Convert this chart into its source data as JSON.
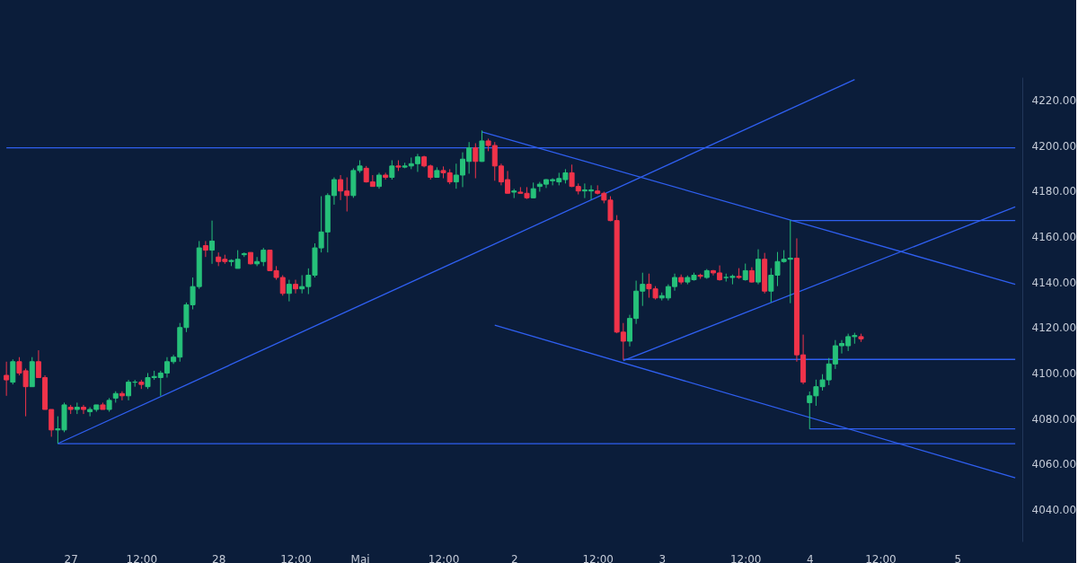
{
  "chart_data": {
    "type": "candlestick",
    "categories": [
      null,
      null,
      null,
      null,
      null,
      null,
      null,
      null,
      null,
      null,
      "27",
      null,
      null,
      null,
      null,
      null,
      null,
      null,
      null,
      null,
      null,
      "12:00",
      null,
      null,
      null,
      null,
      null,
      null,
      null,
      null,
      null,
      null,
      null,
      "28",
      null,
      null,
      null,
      null,
      null,
      null,
      null,
      null,
      null,
      null,
      null,
      "12:00",
      null,
      null,
      null,
      null,
      null,
      null,
      null,
      null,
      null,
      "Mai",
      null,
      null,
      null,
      null,
      null,
      null,
      null,
      null,
      null,
      null,
      null,
      null,
      "12:00",
      null,
      null,
      null,
      null,
      null,
      null,
      null,
      null,
      null,
      null,
      "2",
      null,
      null,
      null,
      null,
      null,
      null,
      null,
      null,
      null,
      null,
      null,
      null,
      "12:00",
      null,
      null,
      null,
      null,
      null,
      null,
      null,
      null,
      null,
      "3",
      null,
      null,
      null,
      null,
      null,
      null,
      null,
      null,
      null,
      null,
      null,
      null,
      "12:00",
      null,
      null,
      null,
      null,
      null,
      null,
      null,
      null,
      null,
      "4",
      null,
      null,
      null,
      null,
      null,
      null,
      null,
      null,
      null,
      null,
      "12:00",
      null,
      null,
      null,
      null,
      null,
      null,
      null,
      null,
      null,
      null,
      null,
      "5",
      null,
      null,
      null,
      null,
      null,
      null,
      null,
      null,
      null
    ],
    "ohlc": [
      [
        4099,
        4105,
        4090,
        4097
      ],
      [
        4096,
        4106,
        4095,
        4105
      ],
      [
        4105,
        4107,
        4099,
        4100
      ],
      [
        4101,
        4102,
        4081,
        4094
      ],
      [
        4094,
        4107,
        4094,
        4105
      ],
      [
        4105,
        4110,
        4098,
        4098
      ],
      [
        4098,
        4099,
        4084,
        4084
      ],
      [
        4084,
        4084,
        4072,
        4075
      ],
      [
        4075,
        4081,
        4069,
        4075.5
      ],
      [
        4075,
        4087,
        4074,
        4086
      ],
      [
        4085,
        4086,
        4082,
        4084
      ],
      [
        4084,
        4087,
        4082,
        4085
      ],
      [
        4085,
        4086,
        4082,
        4084
      ],
      [
        4083,
        4085,
        4081,
        4084
      ],
      [
        4084,
        4086,
        4083,
        4086
      ],
      [
        4086,
        4087,
        4084,
        4084
      ],
      [
        4084,
        4089,
        4083,
        4088
      ],
      [
        4089,
        4092,
        4087,
        4091
      ],
      [
        4091,
        4092,
        4088,
        4090
      ],
      [
        4090,
        4097,
        4088,
        4096
      ],
      [
        4096,
        4097,
        4094,
        4096
      ],
      [
        4096,
        4097,
        4093,
        4095
      ],
      [
        4094,
        4100,
        4093,
        4098
      ],
      [
        4098,
        4101,
        4097,
        4098.5
      ],
      [
        4098,
        4101,
        4090,
        4100
      ],
      [
        4100,
        4107,
        4098,
        4105
      ],
      [
        4105,
        4108,
        4104,
        4107
      ],
      [
        4107,
        4122,
        4105,
        4120
      ],
      [
        4120,
        4131,
        4118,
        4130
      ],
      [
        4130,
        4142,
        4128,
        4138
      ],
      [
        4138,
        4158,
        4137,
        4155
      ],
      [
        4156,
        4158,
        4151,
        4154
      ],
      [
        4154,
        4167,
        4148,
        4158
      ],
      [
        4151,
        4153,
        4147,
        4149
      ],
      [
        4150,
        4152,
        4148,
        4149
      ],
      [
        4149,
        4150,
        4147,
        4149.5
      ],
      [
        4146,
        4154,
        4146,
        4150
      ],
      [
        4152,
        4153,
        4151,
        4152.5
      ],
      [
        4153,
        4153,
        4147.7,
        4148
      ],
      [
        4148,
        4151,
        4147,
        4149
      ],
      [
        4149,
        4155,
        4147,
        4154
      ],
      [
        4154,
        4154,
        4145,
        4145
      ],
      [
        4145,
        4147,
        4141,
        4142
      ],
      [
        4142,
        4143,
        4134,
        4135
      ],
      [
        4135,
        4141,
        4131.5,
        4139
      ],
      [
        4139,
        4141,
        4135,
        4137
      ],
      [
        4137,
        4143,
        4135,
        4138
      ],
      [
        4138,
        4146,
        4134.7,
        4143
      ],
      [
        4143,
        4157,
        4142,
        4155
      ],
      [
        4155,
        4177.7,
        4153,
        4162
      ],
      [
        4162,
        4179,
        4153,
        4178
      ],
      [
        4178,
        4186,
        4174,
        4185
      ],
      [
        4185,
        4187,
        4176,
        4180
      ],
      [
        4180,
        4186,
        4171,
        4178
      ],
      [
        4178,
        4190,
        4177,
        4189
      ],
      [
        4189,
        4193.5,
        4188,
        4191
      ],
      [
        4190,
        4191,
        4183.7,
        4184
      ],
      [
        4184,
        4187,
        4182,
        4182
      ],
      [
        4182,
        4188,
        4181,
        4187
      ],
      [
        4187,
        4188,
        4185,
        4186
      ],
      [
        4186,
        4193.5,
        4185,
        4191
      ],
      [
        4191,
        4193.5,
        4188.8,
        4190.5
      ],
      [
        4190.5,
        4192.4,
        4190,
        4191
      ],
      [
        4191,
        4194.7,
        4189.6,
        4192
      ],
      [
        4192,
        4196.3,
        4188.4,
        4195
      ],
      [
        4195,
        4195.5,
        4190.4,
        4191
      ],
      [
        4191,
        4191.6,
        4185,
        4186
      ],
      [
        4186,
        4190.4,
        4186,
        4189
      ],
      [
        4189,
        4190.8,
        4185.6,
        4188
      ],
      [
        4188,
        4189.6,
        4183,
        4184
      ],
      [
        4184,
        4192,
        4181,
        4187
      ],
      [
        4187,
        4197,
        4181.7,
        4194
      ],
      [
        4193,
        4201.5,
        4187.6,
        4199
      ],
      [
        4199,
        4201,
        4185.6,
        4193
      ],
      [
        4193,
        4206.6,
        4192.8,
        4202
      ],
      [
        4202,
        4203,
        4197.5,
        4200
      ],
      [
        4200,
        4201.5,
        4184.5,
        4191
      ],
      [
        4191,
        4192,
        4182.5,
        4184
      ],
      [
        4185,
        4188.8,
        4179,
        4179
      ],
      [
        4179.5,
        4180.9,
        4176.9,
        4180
      ],
      [
        4179.5,
        4181.7,
        4179,
        4179
      ],
      [
        4179,
        4181.7,
        4176.5,
        4177
      ],
      [
        4177,
        4183.7,
        4176.9,
        4181
      ],
      [
        4182,
        4184,
        4179.7,
        4183
      ],
      [
        4183,
        4185.2,
        4181.3,
        4185
      ],
      [
        4184.5,
        4185.6,
        4182.5,
        4185
      ],
      [
        4184,
        4188,
        4182.5,
        4185.5
      ],
      [
        4185,
        4189.6,
        4183.3,
        4188
      ],
      [
        4188,
        4191.6,
        4181.7,
        4182
      ],
      [
        4182,
        4183.3,
        4178.5,
        4180
      ],
      [
        4180,
        4183.3,
        4176.9,
        4180.5
      ],
      [
        4180,
        4182.5,
        4176.2,
        4180.5
      ],
      [
        4180,
        4182.5,
        4178.5,
        4179
      ],
      [
        4179,
        4179.7,
        4174.6,
        4176
      ],
      [
        4176,
        4177.7,
        4166.7,
        4167
      ],
      [
        4167,
        4169.4,
        4117.5,
        4118
      ],
      [
        4118,
        4122,
        4105.8,
        4114
      ],
      [
        4114,
        4125.6,
        4111.7,
        4124
      ],
      [
        4124,
        4140.6,
        4121.6,
        4136
      ],
      [
        4136,
        4144.1,
        4129.5,
        4139
      ],
      [
        4139,
        4143.7,
        4133.1,
        4137
      ],
      [
        4137,
        4138.2,
        4132.3,
        4133
      ],
      [
        4133,
        4135.4,
        4131.9,
        4134
      ],
      [
        4133,
        4139,
        4131.9,
        4138
      ],
      [
        4138,
        4143.7,
        4136.2,
        4142
      ],
      [
        4142,
        4143.3,
        4139,
        4140
      ],
      [
        4140,
        4142.9,
        4139,
        4142
      ],
      [
        4141,
        4144.1,
        4140.6,
        4143
      ],
      [
        4143,
        4143.7,
        4141.4,
        4142.5
      ],
      [
        4142,
        4145.7,
        4141.4,
        4145
      ],
      [
        4145,
        4145.3,
        4142.9,
        4144
      ],
      [
        4144,
        4147.3,
        4140.6,
        4141
      ],
      [
        4142,
        4143.7,
        4140.2,
        4142
      ],
      [
        4142,
        4143.3,
        4139,
        4142.5
      ],
      [
        4142.5,
        4146.1,
        4141.4,
        4142
      ],
      [
        4141,
        4148.1,
        4140.6,
        4145
      ],
      [
        4145,
        4146.5,
        4139.8,
        4140
      ],
      [
        4140,
        4154.4,
        4139,
        4150
      ],
      [
        4150,
        4152.8,
        4135,
        4136
      ],
      [
        4136,
        4146.1,
        4131.1,
        4143
      ],
      [
        4143,
        4153.2,
        4138.2,
        4149
      ],
      [
        4149,
        4154,
        4148.5,
        4150
      ],
      [
        4150,
        4167.1,
        4130.7,
        4150.5
      ],
      [
        4150.5,
        4159.2,
        4105,
        4108
      ],
      [
        4108,
        4116.9,
        4095.1,
        4096
      ],
      [
        4087,
        4091.9,
        4075.4,
        4090
      ],
      [
        4090,
        4097.1,
        4085.6,
        4094
      ],
      [
        4094,
        4099.5,
        4092.3,
        4097
      ],
      [
        4097,
        4106.6,
        4094.7,
        4104
      ],
      [
        4104,
        4114.5,
        4101.8,
        4112
      ],
      [
        4112,
        4114.5,
        4108.6,
        4113
      ],
      [
        4112,
        4117.3,
        4109.7,
        4116
      ],
      [
        4116,
        4117.7,
        4112.9,
        4116.5
      ],
      [
        4116,
        4117.3,
        4113.7,
        4115
      ],
      null,
      null,
      null,
      null,
      null,
      null,
      null,
      null,
      null,
      null,
      null,
      null,
      null,
      null,
      null,
      null,
      null,
      null,
      null,
      null,
      null,
      null,
      null,
      null
    ],
    "series": [
      {
        "type": "line",
        "color": "#2f5ff0",
        "values": [
          4199,
          null,
          null,
          null,
          null,
          null,
          null,
          null,
          null,
          null,
          null,
          null,
          null,
          null,
          null,
          null,
          null,
          null,
          null,
          null,
          null,
          null,
          null,
          null,
          null,
          null,
          null,
          null,
          null,
          null,
          null,
          null,
          null,
          null,
          null,
          null,
          null,
          null,
          null,
          null,
          null,
          null,
          null,
          null,
          null,
          null,
          null,
          null,
          null,
          null,
          null,
          null,
          null,
          null,
          null,
          null,
          null,
          null,
          null,
          null,
          null,
          null,
          null,
          null,
          null,
          null,
          null,
          null,
          null,
          null,
          null,
          null,
          null,
          null,
          null,
          null,
          null,
          null,
          null,
          null,
          null,
          null,
          null,
          null,
          null,
          null,
          null,
          null,
          null,
          null,
          null,
          null,
          null,
          null,
          null,
          null,
          null,
          null,
          null,
          null,
          null,
          null,
          null,
          null,
          null,
          null,
          null,
          null,
          null,
          null,
          null,
          null,
          null,
          null,
          null,
          null,
          null,
          null,
          null,
          null,
          null,
          null,
          null,
          null,
          null,
          null,
          null,
          null,
          null,
          null,
          null,
          null,
          null,
          null,
          null,
          null,
          null,
          null,
          null,
          null,
          null,
          null,
          null,
          null,
          null,
          null,
          null,
          null,
          null,
          null,
          null,
          null,
          null,
          null,
          null,
          null,
          null,
          4199
        ]
      },
      {
        "type": "line",
        "color": "#2f5ff0",
        "values": [
          null,
          null,
          null,
          null,
          null,
          null,
          null,
          null,
          4069,
          null,
          null,
          null,
          null,
          null,
          null,
          null,
          null,
          null,
          null,
          null,
          null,
          null,
          null,
          null,
          null,
          null,
          null,
          null,
          null,
          null,
          null,
          null,
          null,
          null,
          null,
          null,
          null,
          null,
          null,
          null,
          null,
          null,
          null,
          null,
          null,
          null,
          null,
          null,
          null,
          null,
          null,
          null,
          null,
          null,
          null,
          null,
          null,
          null,
          null,
          null,
          null,
          null,
          null,
          null,
          null,
          null,
          null,
          null,
          null,
          null,
          null,
          null,
          null,
          null,
          null,
          null,
          null,
          null,
          null,
          null,
          null,
          null,
          null,
          null,
          null,
          null,
          null,
          null,
          null,
          null,
          null,
          null,
          null,
          null,
          null,
          null,
          null,
          null,
          null,
          null,
          null,
          null,
          null,
          null,
          null,
          null,
          null,
          null,
          null,
          null,
          null,
          null,
          null,
          null,
          null,
          null,
          null,
          null,
          null,
          null,
          null,
          null,
          null,
          null,
          null,
          null,
          null,
          null,
          null,
          null,
          null,
          null,
          4229,
          null,
          null,
          null,
          null,
          null,
          null,
          null,
          null,
          null,
          null,
          null,
          null,
          null,
          null,
          null,
          null,
          null,
          null,
          null,
          null,
          null,
          null,
          null,
          null,
          null
        ]
      },
      {
        "type": "line",
        "color": "#2f5ff0",
        "values": [
          null,
          null,
          null,
          null,
          null,
          null,
          null,
          null,
          null,
          null,
          null,
          null,
          null,
          null,
          null,
          null,
          null,
          null,
          null,
          null,
          null,
          null,
          null,
          null,
          null,
          null,
          null,
          null,
          null,
          null,
          null,
          null,
          null,
          null,
          null,
          null,
          null,
          null,
          null,
          null,
          null,
          null,
          null,
          null,
          null,
          null,
          null,
          null,
          null,
          null,
          null,
          null,
          null,
          null,
          null,
          null,
          null,
          null,
          null,
          null,
          null,
          null,
          null,
          null,
          null,
          null,
          null,
          null,
          null,
          null,
          null,
          null,
          null,
          null,
          4206,
          null,
          null,
          null,
          null,
          null,
          null,
          null,
          null,
          null,
          null,
          null,
          null,
          null,
          null,
          null,
          null,
          null,
          null,
          null,
          null,
          null,
          null,
          null,
          null,
          null,
          null,
          null,
          null,
          null,
          null,
          null,
          null,
          null,
          null,
          null,
          null,
          null,
          null,
          null,
          null,
          null,
          null,
          null,
          null,
          null,
          null,
          null,
          null,
          null,
          null,
          null,
          null,
          null,
          null,
          null,
          null,
          null,
          null,
          null,
          null,
          null,
          null,
          null,
          null,
          null,
          null,
          null,
          null,
          null,
          null,
          null,
          null,
          null,
          null,
          null,
          null,
          null,
          null,
          null,
          null,
          null,
          null,
          4139
        ]
      },
      {
        "type": "line",
        "color": "#2f5ff0",
        "values": [
          null,
          null,
          null,
          null,
          null,
          null,
          null,
          null,
          null,
          null,
          null,
          null,
          null,
          null,
          null,
          null,
          null,
          null,
          null,
          null,
          null,
          null,
          null,
          null,
          null,
          null,
          null,
          null,
          null,
          null,
          null,
          null,
          null,
          null,
          null,
          null,
          null,
          null,
          null,
          null,
          null,
          null,
          null,
          null,
          null,
          null,
          null,
          null,
          null,
          null,
          null,
          null,
          null,
          null,
          null,
          null,
          null,
          null,
          null,
          null,
          null,
          null,
          null,
          null,
          null,
          null,
          null,
          null,
          null,
          null,
          null,
          null,
          null,
          null,
          null,
          null,
          4121,
          null,
          null,
          null,
          null,
          null,
          null,
          null,
          null,
          null,
          null,
          null,
          null,
          null,
          null,
          null,
          null,
          null,
          null,
          null,
          null,
          null,
          null,
          null,
          null,
          null,
          null,
          null,
          null,
          null,
          null,
          null,
          null,
          null,
          null,
          null,
          null,
          null,
          null,
          null,
          null,
          null,
          null,
          null,
          null,
          null,
          null,
          null,
          null,
          null,
          null,
          null,
          null,
          null,
          null,
          null,
          null,
          null,
          null,
          null,
          null,
          null,
          null,
          null,
          null,
          null,
          null,
          null,
          null,
          null,
          null,
          null,
          null,
          null,
          null,
          null,
          null,
          null,
          null,
          null,
          null,
          4054
        ]
      },
      {
        "type": "line",
        "color": "#2f5ff0",
        "values": [
          null,
          null,
          null,
          null,
          null,
          null,
          null,
          null,
          null,
          null,
          null,
          null,
          null,
          null,
          null,
          null,
          null,
          null,
          null,
          null,
          null,
          null,
          null,
          null,
          null,
          null,
          null,
          null,
          null,
          null,
          null,
          null,
          null,
          null,
          null,
          null,
          null,
          null,
          null,
          null,
          null,
          null,
          null,
          null,
          null,
          null,
          null,
          null,
          null,
          null,
          null,
          null,
          null,
          null,
          null,
          null,
          null,
          null,
          null,
          null,
          null,
          null,
          null,
          null,
          null,
          null,
          null,
          null,
          null,
          null,
          null,
          null,
          null,
          null,
          null,
          null,
          null,
          null,
          null,
          null,
          null,
          null,
          null,
          null,
          null,
          null,
          null,
          null,
          null,
          null,
          null,
          null,
          null,
          null,
          null,
          null,
          4105.5,
          null,
          null,
          null,
          null,
          null,
          null,
          null,
          null,
          null,
          null,
          null,
          null,
          null,
          null,
          null,
          null,
          null,
          null,
          null,
          null,
          null,
          null,
          null,
          null,
          null,
          null,
          null,
          null,
          null,
          null,
          null,
          null,
          null,
          null,
          null,
          null,
          null,
          null,
          null,
          null,
          null,
          null,
          null,
          null,
          null,
          null,
          null,
          null,
          null,
          null,
          null,
          null,
          null,
          null,
          null,
          null,
          null,
          null,
          null,
          null,
          4173
        ]
      },
      {
        "type": "line",
        "color": "#2f5ff0",
        "values": [
          null,
          null,
          null,
          null,
          null,
          null,
          null,
          null,
          null,
          null,
          null,
          null,
          null,
          null,
          null,
          null,
          null,
          null,
          null,
          null,
          null,
          null,
          null,
          null,
          null,
          null,
          null,
          null,
          null,
          null,
          null,
          null,
          null,
          null,
          null,
          null,
          null,
          null,
          null,
          null,
          null,
          null,
          null,
          null,
          null,
          null,
          null,
          null,
          null,
          null,
          null,
          null,
          null,
          null,
          null,
          null,
          null,
          null,
          null,
          null,
          null,
          null,
          null,
          null,
          null,
          null,
          null,
          null,
          null,
          null,
          null,
          null,
          null,
          null,
          null,
          null,
          null,
          null,
          null,
          null,
          null,
          null,
          null,
          null,
          null,
          null,
          null,
          null,
          null,
          null,
          null,
          null,
          null,
          null,
          null,
          null,
          null,
          null,
          null,
          null,
          null,
          null,
          null,
          null,
          null,
          null,
          null,
          null,
          null,
          null,
          null,
          null,
          null,
          null,
          null,
          null,
          null,
          null,
          null,
          null,
          null,
          null,
          4167,
          null,
          null,
          null,
          null,
          null,
          null,
          null,
          null,
          null,
          null,
          null,
          null,
          null,
          null,
          null,
          null,
          null,
          null,
          null,
          null,
          null,
          null,
          null,
          null,
          null,
          null,
          null,
          null,
          null,
          null,
          null,
          null,
          null,
          null,
          4167
        ]
      },
      {
        "type": "line",
        "color": "#2f5ff0",
        "values": [
          null,
          null,
          null,
          null,
          null,
          null,
          null,
          null,
          null,
          null,
          null,
          null,
          null,
          null,
          null,
          null,
          null,
          null,
          null,
          null,
          null,
          null,
          null,
          null,
          null,
          null,
          null,
          null,
          null,
          null,
          null,
          null,
          null,
          null,
          null,
          null,
          null,
          null,
          null,
          null,
          null,
          null,
          null,
          null,
          null,
          null,
          null,
          null,
          null,
          null,
          null,
          null,
          null,
          null,
          null,
          null,
          null,
          null,
          null,
          null,
          null,
          null,
          null,
          null,
          null,
          null,
          null,
          null,
          null,
          null,
          null,
          null,
          null,
          null,
          null,
          null,
          null,
          null,
          null,
          null,
          null,
          null,
          null,
          null,
          null,
          null,
          null,
          null,
          null,
          null,
          null,
          null,
          null,
          null,
          null,
          null,
          4106,
          null,
          null,
          null,
          null,
          null,
          null,
          null,
          null,
          null,
          null,
          null,
          null,
          null,
          null,
          null,
          null,
          null,
          null,
          null,
          null,
          null,
          null,
          null,
          null,
          null,
          null,
          null,
          null,
          null,
          null,
          null,
          null,
          null,
          null,
          null,
          null,
          null,
          null,
          null,
          null,
          null,
          null,
          null,
          null,
          null,
          null,
          null,
          null,
          null,
          null,
          null,
          null,
          null,
          null,
          null,
          null,
          null,
          null,
          null,
          null,
          4106
        ]
      },
      {
        "type": "line",
        "color": "#2f5ff0",
        "values": [
          null,
          null,
          null,
          null,
          null,
          null,
          null,
          null,
          null,
          null,
          null,
          null,
          null,
          null,
          null,
          null,
          null,
          null,
          null,
          null,
          null,
          null,
          null,
          null,
          null,
          null,
          null,
          null,
          null,
          null,
          null,
          null,
          null,
          null,
          null,
          null,
          null,
          null,
          null,
          null,
          null,
          null,
          null,
          null,
          null,
          null,
          null,
          null,
          null,
          null,
          null,
          null,
          null,
          null,
          null,
          null,
          null,
          null,
          null,
          null,
          null,
          null,
          null,
          null,
          null,
          null,
          null,
          null,
          null,
          null,
          null,
          null,
          null,
          null,
          null,
          null,
          null,
          null,
          null,
          null,
          null,
          null,
          null,
          null,
          null,
          null,
          null,
          null,
          null,
          null,
          null,
          null,
          null,
          null,
          null,
          null,
          null,
          null,
          null,
          null,
          null,
          null,
          null,
          null,
          null,
          null,
          null,
          null,
          null,
          null,
          null,
          null,
          null,
          null,
          null,
          null,
          null,
          null,
          null,
          null,
          null,
          null,
          null,
          null,
          null,
          4075.5,
          null,
          null,
          null,
          null,
          null,
          null,
          null,
          null,
          null,
          null,
          null,
          null,
          null,
          null,
          null,
          null,
          null,
          null,
          null,
          null,
          null,
          null,
          null,
          null,
          null,
          null,
          null,
          null,
          null,
          null,
          null,
          4075.5
        ]
      },
      {
        "type": "line",
        "color": "#2f5ff0",
        "values": [
          null,
          null,
          null,
          null,
          null,
          null,
          null,
          null,
          4069,
          null,
          null,
          null,
          null,
          null,
          null,
          null,
          null,
          null,
          null,
          null,
          null,
          null,
          null,
          null,
          null,
          null,
          null,
          null,
          null,
          null,
          null,
          null,
          null,
          null,
          null,
          null,
          null,
          null,
          null,
          null,
          null,
          null,
          null,
          null,
          null,
          null,
          null,
          null,
          null,
          null,
          null,
          null,
          null,
          null,
          null,
          null,
          null,
          null,
          null,
          null,
          null,
          null,
          null,
          null,
          null,
          null,
          null,
          null,
          null,
          null,
          null,
          null,
          null,
          null,
          null,
          null,
          null,
          null,
          null,
          null,
          null,
          null,
          null,
          null,
          null,
          null,
          null,
          null,
          null,
          null,
          null,
          null,
          null,
          null,
          null,
          null,
          null,
          null,
          null,
          null,
          null,
          null,
          null,
          null,
          null,
          null,
          null,
          null,
          null,
          null,
          null,
          null,
          null,
          null,
          null,
          null,
          null,
          null,
          null,
          null,
          null,
          null,
          null,
          null,
          null,
          null,
          null,
          null,
          null,
          null,
          null,
          null,
          null,
          null,
          null,
          null,
          null,
          null,
          null,
          null,
          null,
          null,
          null,
          null,
          null,
          null,
          null,
          null,
          null,
          null,
          null,
          null,
          null,
          null,
          null,
          null,
          null,
          4069
        ]
      }
    ],
    "ylim": [
      4026,
      4230
    ],
    "yticks": [
      {
        "value": 4040,
        "label": "4040.00"
      },
      {
        "value": 4060,
        "label": "4060.00"
      },
      {
        "value": 4080,
        "label": "4080.00"
      },
      {
        "value": 4100,
        "label": "4100.00"
      },
      {
        "value": 4120,
        "label": "4120.00"
      },
      {
        "value": 4140,
        "label": "4140.00"
      },
      {
        "value": 4160,
        "label": "4160.00"
      },
      {
        "value": 4180,
        "label": "4180.00"
      },
      {
        "value": 4200,
        "label": "4200.00"
      },
      {
        "value": 4220,
        "label": "4220.00"
      }
    ],
    "grid": false
  }
}
